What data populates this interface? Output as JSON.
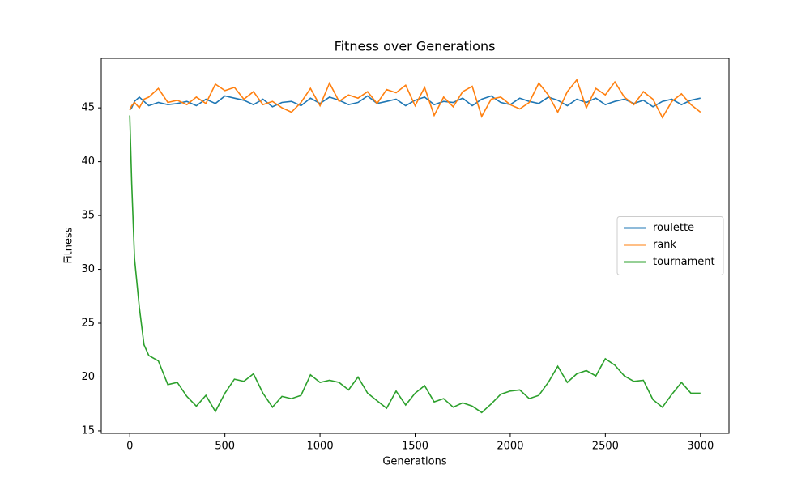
{
  "chart_data": {
    "type": "line",
    "title": "Fitness over Generations",
    "x_label": "Generations",
    "y_label": "Fitness",
    "x": [
      0,
      10,
      25,
      50,
      75,
      100,
      150,
      200,
      250,
      300,
      350,
      400,
      450,
      500,
      550,
      600,
      650,
      700,
      750,
      800,
      850,
      900,
      950,
      1000,
      1050,
      1100,
      1150,
      1200,
      1250,
      1300,
      1350,
      1400,
      1450,
      1500,
      1550,
      1600,
      1650,
      1700,
      1750,
      1800,
      1850,
      1900,
      1950,
      2000,
      2050,
      2100,
      2150,
      2200,
      2250,
      2300,
      2350,
      2400,
      2450,
      2500,
      2550,
      2600,
      2650,
      2700,
      2750,
      2800,
      2850,
      2900,
      2950,
      3000
    ],
    "series": [
      {
        "name": "roulette",
        "color": "#1f77b4",
        "values": [
          44.8,
          45.0,
          45.6,
          46.0,
          45.6,
          45.2,
          45.5,
          45.3,
          45.4,
          45.6,
          45.2,
          45.8,
          45.4,
          46.1,
          45.9,
          45.7,
          45.3,
          45.8,
          45.1,
          45.5,
          45.6,
          45.2,
          45.9,
          45.4,
          46.0,
          45.7,
          45.3,
          45.5,
          46.1,
          45.4,
          45.6,
          45.8,
          45.2,
          45.7,
          46.0,
          45.3,
          45.6,
          45.5,
          45.9,
          45.2,
          45.8,
          46.1,
          45.5,
          45.3,
          45.9,
          45.6,
          45.4,
          46.0,
          45.7,
          45.2,
          45.8,
          45.5,
          45.9,
          45.3,
          45.6,
          45.8,
          45.4,
          45.7,
          45.1,
          45.6,
          45.8,
          45.3,
          45.7,
          45.9
        ]
      },
      {
        "name": "rank",
        "color": "#ff7f0e",
        "values": [
          44.8,
          45.2,
          45.5,
          45.0,
          45.8,
          46.0,
          46.8,
          45.5,
          45.7,
          45.3,
          46.0,
          45.4,
          47.2,
          46.6,
          46.9,
          45.8,
          46.5,
          45.3,
          45.6,
          45.0,
          44.6,
          45.5,
          46.8,
          45.2,
          47.3,
          45.6,
          46.2,
          45.9,
          46.5,
          45.4,
          46.7,
          46.4,
          47.1,
          45.2,
          46.9,
          44.3,
          46.0,
          45.1,
          46.5,
          47.0,
          44.2,
          45.8,
          46.0,
          45.3,
          44.9,
          45.5,
          47.3,
          46.2,
          44.6,
          46.5,
          47.6,
          45.0,
          46.8,
          46.2,
          47.4,
          46.0,
          45.3,
          46.5,
          45.8,
          44.1,
          45.6,
          46.3,
          45.3,
          44.6
        ]
      },
      {
        "name": "tournament",
        "color": "#2ca02c",
        "values": [
          44.3,
          38,
          31,
          26.5,
          23,
          22,
          21.5,
          19.3,
          19.5,
          18.2,
          17.3,
          18.3,
          16.8,
          18.5,
          19.8,
          19.6,
          20.3,
          18.5,
          17.2,
          18.2,
          18,
          18.3,
          20.2,
          19.5,
          19.7,
          19.5,
          18.8,
          20,
          18.5,
          17.8,
          17.1,
          18.7,
          17.4,
          18.5,
          19.2,
          17.7,
          18,
          17.2,
          17.6,
          17.3,
          16.7,
          17.5,
          18.4,
          18.7,
          18.8,
          18,
          18.3,
          19.5,
          21,
          19.5,
          20.3,
          20.6,
          20.1,
          21.7,
          21.1,
          20.1,
          19.6,
          19.7,
          17.9,
          17.2,
          18.4,
          19.5,
          18.5,
          18.5
        ]
      }
    ],
    "xlim": [
      -150,
      3150
    ],
    "ylim": [
      14.77,
      49.6
    ],
    "xticks": [
      0,
      500,
      1000,
      1500,
      2000,
      2500,
      3000
    ],
    "yticks": [
      15,
      20,
      25,
      30,
      35,
      40,
      45
    ],
    "legend": "center right"
  }
}
